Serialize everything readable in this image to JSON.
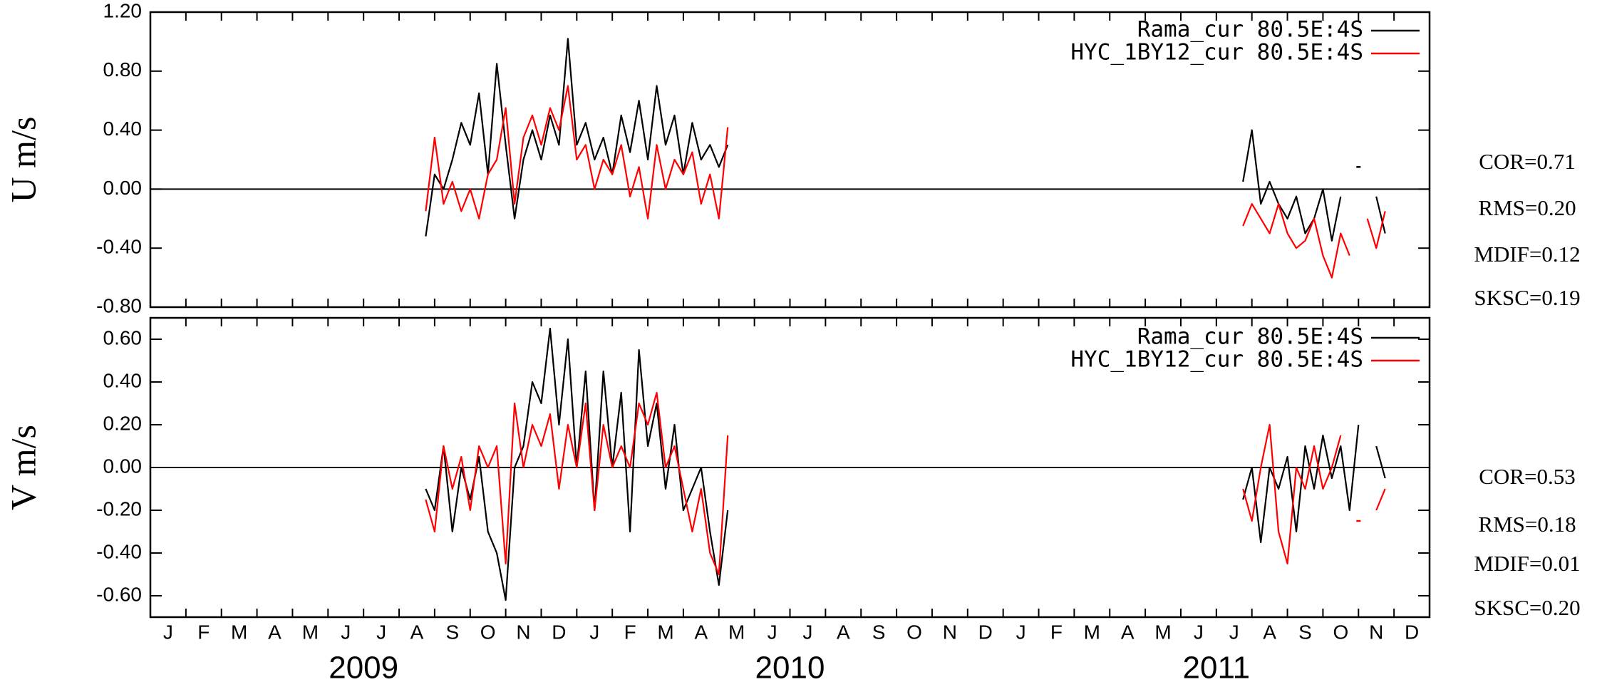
{
  "chart_data": [
    {
      "type": "line",
      "ylabel": "U m/s",
      "xlim": [
        0,
        36
      ],
      "xticks": [
        0,
        1,
        2,
        3,
        4,
        5,
        6,
        7,
        8,
        9,
        10,
        11,
        12,
        13,
        14,
        15,
        16,
        17,
        18,
        19,
        20,
        21,
        22,
        23,
        24,
        25,
        26,
        27,
        28,
        29,
        30,
        31,
        32,
        33,
        34,
        35,
        36
      ],
      "ylim": [
        -0.8,
        1.2
      ],
      "yticks": [
        {
          "value": -0.8,
          "label": "-0.80"
        },
        {
          "value": -0.4,
          "label": "-0.40"
        },
        {
          "value": 0,
          "label": "0.00"
        },
        {
          "value": 0.4,
          "label": "0.40"
        },
        {
          "value": 0.8,
          "label": "0.80"
        },
        {
          "value": 1.2,
          "label": "1.20"
        }
      ],
      "x": [
        7.75,
        8,
        8.25,
        8.5,
        8.75,
        9,
        9.25,
        9.5,
        9.75,
        10,
        10.25,
        10.5,
        10.75,
        11,
        11.25,
        11.5,
        11.75,
        12,
        12.25,
        12.5,
        12.75,
        13,
        13.25,
        13.5,
        13.75,
        14,
        14.25,
        14.5,
        14.75,
        15,
        15.25,
        15.5,
        15.75,
        16,
        16.25,
        24,
        30.75,
        31,
        31.25,
        31.5,
        31.75,
        32,
        32.25,
        32.5,
        32.75,
        33,
        33.25,
        33.5,
        33.75,
        34,
        34.25,
        34.5,
        34.75
      ],
      "series": [
        {
          "name": "Rama_cur 80.5E:4S",
          "color": "#000000",
          "values": [
            -0.32,
            0.1,
            0.0,
            0.2,
            0.45,
            0.3,
            0.65,
            0.1,
            0.85,
            0.3,
            -0.2,
            0.2,
            0.4,
            0.2,
            0.5,
            0.3,
            1.02,
            0.3,
            0.45,
            0.2,
            0.35,
            0.1,
            0.5,
            0.25,
            0.6,
            0.2,
            0.7,
            0.3,
            0.5,
            0.1,
            0.45,
            0.2,
            0.3,
            0.15,
            0.3,
            null,
            0.05,
            0.4,
            -0.1,
            0.05,
            -0.1,
            -0.2,
            -0.05,
            -0.3,
            -0.2,
            0.0,
            -0.35,
            -0.05,
            null,
            0.15,
            null,
            -0.05,
            -0.3
          ]
        },
        {
          "name": "HYC_1BY12_cur 80.5E:4S",
          "color": "#ff0000",
          "values": [
            -0.15,
            0.35,
            -0.1,
            0.05,
            -0.15,
            0.0,
            -0.2,
            0.1,
            0.2,
            0.55,
            -0.1,
            0.35,
            0.5,
            0.3,
            0.55,
            0.4,
            0.7,
            0.2,
            0.3,
            0.0,
            0.2,
            0.1,
            0.3,
            -0.05,
            0.15,
            -0.2,
            0.3,
            0.0,
            0.2,
            0.1,
            0.25,
            -0.1,
            0.1,
            -0.2,
            0.42,
            null,
            -0.25,
            -0.1,
            -0.2,
            -0.3,
            -0.1,
            -0.3,
            -0.4,
            -0.35,
            -0.2,
            -0.45,
            -0.6,
            -0.3,
            -0.45,
            null,
            -0.2,
            -0.4,
            -0.15
          ]
        }
      ],
      "annotations": [
        "COR=0.71",
        "RMS=0.20",
        "MDIF=0.12",
        "SKSC=0.19"
      ]
    },
    {
      "type": "line",
      "ylabel": "V m/s",
      "xlim": [
        0,
        36
      ],
      "xticks": [
        0,
        1,
        2,
        3,
        4,
        5,
        6,
        7,
        8,
        9,
        10,
        11,
        12,
        13,
        14,
        15,
        16,
        17,
        18,
        19,
        20,
        21,
        22,
        23,
        24,
        25,
        26,
        27,
        28,
        29,
        30,
        31,
        32,
        33,
        34,
        35,
        36
      ],
      "ylim": [
        -0.7,
        0.7
      ],
      "yticks": [
        {
          "value": -0.6,
          "label": "-0.60"
        },
        {
          "value": -0.4,
          "label": "-0.40"
        },
        {
          "value": -0.2,
          "label": "-0.20"
        },
        {
          "value": 0,
          "label": "0.00"
        },
        {
          "value": 0.2,
          "label": "0.20"
        },
        {
          "value": 0.4,
          "label": "0.40"
        },
        {
          "value": 0.6,
          "label": "0.60"
        }
      ],
      "x": [
        7.75,
        8,
        8.25,
        8.5,
        8.75,
        9,
        9.25,
        9.5,
        9.75,
        10,
        10.25,
        10.5,
        10.75,
        11,
        11.25,
        11.5,
        11.75,
        12,
        12.25,
        12.5,
        12.75,
        13,
        13.25,
        13.5,
        13.75,
        14,
        14.25,
        14.5,
        14.75,
        15,
        15.25,
        15.5,
        15.75,
        16,
        16.25,
        24,
        30.75,
        31,
        31.25,
        31.5,
        31.75,
        32,
        32.25,
        32.5,
        32.75,
        33,
        33.25,
        33.5,
        33.75,
        34,
        34.25,
        34.5,
        34.75
      ],
      "series": [
        {
          "name": "Rama_cur 80.5E:4S",
          "color": "#000000",
          "values": [
            -0.1,
            -0.2,
            0.1,
            -0.3,
            0.0,
            -0.15,
            0.05,
            -0.3,
            -0.4,
            -0.62,
            0.0,
            0.1,
            0.4,
            0.3,
            0.65,
            0.2,
            0.6,
            0.0,
            0.45,
            -0.2,
            0.45,
            0.0,
            0.35,
            -0.3,
            0.55,
            0.1,
            0.3,
            -0.1,
            0.2,
            -0.2,
            -0.1,
            0.0,
            -0.3,
            -0.55,
            -0.2,
            null,
            -0.15,
            0.0,
            -0.35,
            0.0,
            -0.1,
            0.05,
            -0.3,
            0.1,
            -0.1,
            0.15,
            -0.05,
            0.1,
            -0.2,
            0.2,
            null,
            0.1,
            -0.05
          ]
        },
        {
          "name": "HYC_1BY12_cur 80.5E:4S",
          "color": "#ff0000",
          "values": [
            -0.15,
            -0.3,
            0.1,
            -0.1,
            0.05,
            -0.2,
            0.1,
            0.0,
            0.1,
            -0.45,
            0.3,
            0.0,
            0.2,
            0.1,
            0.25,
            -0.1,
            0.2,
            0.0,
            0.3,
            -0.2,
            0.2,
            0.0,
            0.1,
            0.0,
            0.3,
            0.2,
            0.35,
            0.0,
            0.1,
            -0.1,
            -0.3,
            -0.1,
            -0.4,
            -0.5,
            0.15,
            null,
            -0.1,
            -0.25,
            0.0,
            0.2,
            -0.3,
            -0.45,
            0.0,
            -0.1,
            0.1,
            -0.1,
            0.0,
            0.15,
            null,
            -0.25,
            null,
            -0.2,
            -0.1
          ]
        }
      ],
      "annotations": [
        "COR=0.53",
        "RMS=0.18",
        "MDIF=0.01",
        "SKSC=0.20"
      ],
      "month_labels": [
        "J",
        "F",
        "M",
        "A",
        "M",
        "J",
        "J",
        "A",
        "S",
        "O",
        "N",
        "D",
        "J",
        "F",
        "M",
        "A",
        "M",
        "J",
        "J",
        "A",
        "S",
        "O",
        "N",
        "D",
        "J",
        "F",
        "M",
        "A",
        "M",
        "J",
        "J",
        "A",
        "S",
        "O",
        "N",
        "D"
      ],
      "years": [
        "2009",
        "2010",
        "2011"
      ]
    }
  ]
}
